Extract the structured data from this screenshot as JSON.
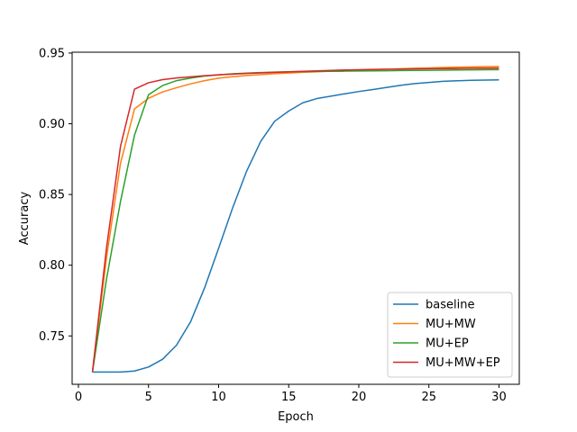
{
  "chart_data": {
    "type": "line",
    "title": "",
    "xlabel": "Epoch",
    "ylabel": "Accuracy",
    "xlim": [
      -0.45,
      31.45
    ],
    "ylim": [
      0.7158,
      0.9506
    ],
    "xticks": [
      0,
      5,
      10,
      15,
      20,
      25,
      30
    ],
    "xtick_labels": [
      "0",
      "5",
      "10",
      "15",
      "20",
      "25",
      "30"
    ],
    "yticks": [
      0.75,
      0.8,
      0.85,
      0.9,
      0.95
    ],
    "ytick_labels": [
      "0.75",
      "0.80",
      "0.85",
      "0.90",
      "0.95"
    ],
    "grid": false,
    "legend_position": "lower-right",
    "x": [
      1,
      2,
      3,
      4,
      5,
      6,
      7,
      8,
      9,
      10,
      11,
      12,
      13,
      14,
      15,
      16,
      17,
      18,
      19,
      20,
      21,
      22,
      23,
      24,
      25,
      26,
      27,
      28,
      29,
      30
    ],
    "series": [
      {
        "name": "baseline",
        "color": "#1f77b4",
        "values": [
          0.7245,
          0.7245,
          0.7245,
          0.7252,
          0.728,
          0.7335,
          0.7435,
          0.76,
          0.784,
          0.812,
          0.8405,
          0.8665,
          0.8875,
          0.9018,
          0.909,
          0.9148,
          0.9178,
          0.9195,
          0.9212,
          0.9228,
          0.9242,
          0.9257,
          0.9272,
          0.9284,
          0.9292,
          0.93,
          0.9304,
          0.9307,
          0.9309,
          0.931
        ]
      },
      {
        "name": "MU+MW",
        "color": "#ff7f0e",
        "values": [
          0.7245,
          0.805,
          0.872,
          0.9105,
          0.918,
          0.9225,
          0.9255,
          0.9282,
          0.9305,
          0.9322,
          0.9333,
          0.9341,
          0.9348,
          0.9354,
          0.9359,
          0.9364,
          0.9368,
          0.9372,
          0.9376,
          0.938,
          0.9383,
          0.9386,
          0.9389,
          0.9392,
          0.9395,
          0.9398,
          0.94,
          0.9402,
          0.9404,
          0.9405
        ]
      },
      {
        "name": "MU+EP",
        "color": "#2ca02c",
        "values": [
          0.7245,
          0.79,
          0.845,
          0.892,
          0.9205,
          0.927,
          0.9305,
          0.9323,
          0.9337,
          0.9346,
          0.9353,
          0.9358,
          0.9362,
          0.9365,
          0.9367,
          0.9369,
          0.937,
          0.9371,
          0.9372,
          0.9373,
          0.9374,
          0.9375,
          0.9376,
          0.9377,
          0.9378,
          0.9379,
          0.938,
          0.9381,
          0.9382,
          0.9383
        ]
      },
      {
        "name": "MU+MW+EP",
        "color": "#d62728",
        "values": [
          0.7245,
          0.812,
          0.884,
          0.9245,
          0.929,
          0.9312,
          0.9324,
          0.9332,
          0.934,
          0.9346,
          0.9351,
          0.9356,
          0.936,
          0.9364,
          0.9368,
          0.9371,
          0.9374,
          0.9377,
          0.938,
          0.9382,
          0.9384,
          0.9386,
          0.9387,
          0.9388,
          0.9389,
          0.939,
          0.9391,
          0.9392,
          0.9393,
          0.9394
        ]
      }
    ]
  }
}
